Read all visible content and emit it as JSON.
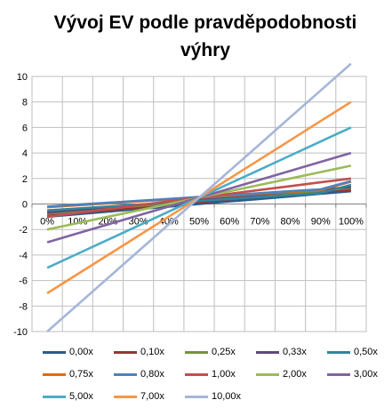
{
  "chart_data": {
    "type": "line",
    "title": "Vývoj EV podle pravděpodobnosti výhry",
    "xlabel": "",
    "ylabel": "",
    "x": [
      "0%",
      "10%",
      "20%",
      "30%",
      "40%",
      "50%",
      "60%",
      "70%",
      "80%",
      "90%",
      "100%"
    ],
    "ylim": [
      -10,
      10
    ],
    "yticks": [
      "-10",
      "-8",
      "-6",
      "-4",
      "-2",
      "0",
      "2",
      "4",
      "6",
      "8",
      "10"
    ],
    "grid": true,
    "legend_position": "bottom",
    "series": [
      {
        "name": "0,00x",
        "color": "#2E5A8C",
        "values": [
          -1.0,
          -0.8,
          -0.6,
          -0.4,
          -0.2,
          0.0,
          0.2,
          0.4,
          0.6,
          0.8,
          1.0
        ]
      },
      {
        "name": "0,10x",
        "color": "#943634",
        "values": [
          -0.9,
          -0.69,
          -0.48,
          -0.27,
          -0.06,
          0.15,
          0.36,
          0.57,
          0.78,
          0.99,
          1.1
        ]
      },
      {
        "name": "0,25x",
        "color": "#76923C",
        "values": [
          -0.75,
          -0.55,
          -0.35,
          -0.15,
          0.05,
          0.25,
          0.45,
          0.65,
          0.85,
          1.05,
          1.25
        ]
      },
      {
        "name": "0,33x",
        "color": "#5F497A",
        "values": [
          -0.67,
          -0.47,
          -0.27,
          -0.07,
          0.13,
          0.33,
          0.53,
          0.73,
          0.93,
          1.13,
          1.33
        ]
      },
      {
        "name": "0,50x",
        "color": "#31859C",
        "values": [
          -0.5,
          -0.35,
          -0.2,
          -0.05,
          0.1,
          0.25,
          0.4,
          0.55,
          0.7,
          0.85,
          1.5
        ]
      },
      {
        "name": "0,75x",
        "color": "#E46C0A",
        "values": [
          -0.25,
          -0.1,
          0.05,
          0.2,
          0.35,
          0.5,
          0.65,
          0.8,
          0.95,
          1.1,
          1.75
        ]
      },
      {
        "name": "0,80x",
        "color": "#4F81BD",
        "values": [
          -0.2,
          -0.05,
          0.1,
          0.25,
          0.4,
          0.55,
          0.7,
          0.85,
          1.0,
          1.15,
          1.8
        ]
      },
      {
        "name": "1,00x",
        "color": "#C0504D",
        "values": [
          -1.0,
          -0.7,
          -0.4,
          -0.1,
          0.2,
          0.5,
          0.8,
          1.1,
          1.4,
          1.7,
          2.0
        ]
      },
      {
        "name": "2,00x",
        "color": "#9BBB59",
        "values": [
          -2.0,
          -1.5,
          -1.0,
          -0.5,
          0.0,
          0.5,
          1.0,
          1.5,
          2.0,
          2.5,
          3.0
        ]
      },
      {
        "name": "3,00x",
        "color": "#8064A2",
        "values": [
          -3.0,
          -2.3,
          -1.6,
          -0.9,
          -0.2,
          0.5,
          1.2,
          1.9,
          2.6,
          3.3,
          4.0
        ]
      },
      {
        "name": "5,00x",
        "color": "#4BACC6",
        "values": [
          -5.0,
          -3.9,
          -2.8,
          -1.7,
          -0.6,
          0.5,
          1.6,
          2.7,
          3.8,
          4.9,
          6.0
        ]
      },
      {
        "name": "7,00x",
        "color": "#F79646",
        "values": [
          -7.0,
          -5.5,
          -4.0,
          -2.5,
          -1.0,
          0.5,
          2.0,
          3.5,
          5.0,
          6.5,
          8.0
        ]
      },
      {
        "name": "10,00x",
        "color": "#A5B6D8",
        "values": [
          -10.0,
          -7.9,
          -5.8,
          -3.7,
          -1.6,
          0.5,
          2.6,
          4.7,
          6.8,
          8.9,
          11.0
        ]
      }
    ]
  }
}
